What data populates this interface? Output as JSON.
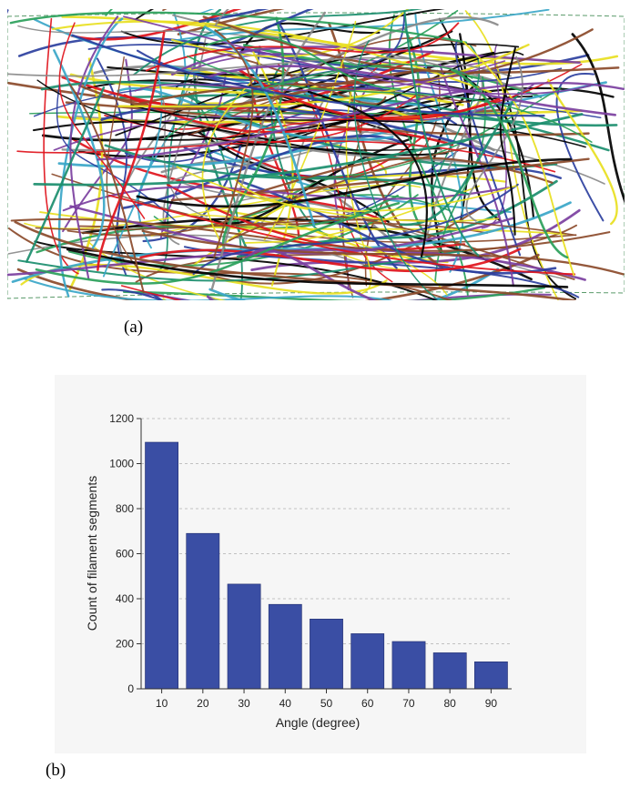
{
  "panels": {
    "a_label": "(a)",
    "b_label": "(b)"
  },
  "network": {
    "description_colors": [
      "#e0121b",
      "#1b8e6e",
      "#2b3f9e",
      "#7b3fa0",
      "#3aa6c8",
      "#000000",
      "#e8e020",
      "#8a8a8a",
      "#8b4a2a",
      "#2aa05a"
    ]
  },
  "chart_data": {
    "type": "bar",
    "categories": [
      "10",
      "20",
      "30",
      "40",
      "50",
      "60",
      "70",
      "80",
      "90"
    ],
    "values": [
      1095,
      690,
      465,
      375,
      310,
      245,
      210,
      160,
      120
    ],
    "title": "",
    "xlabel": "Angle (degree)",
    "ylabel": "Count of filament segments",
    "ylim": [
      0,
      1200
    ],
    "yticks": [
      "0",
      "200",
      "400",
      "600",
      "800",
      "1000",
      "1200"
    ],
    "bar_color": "#3a4ea4",
    "grid": "horizontal dashed",
    "legend": "none"
  }
}
